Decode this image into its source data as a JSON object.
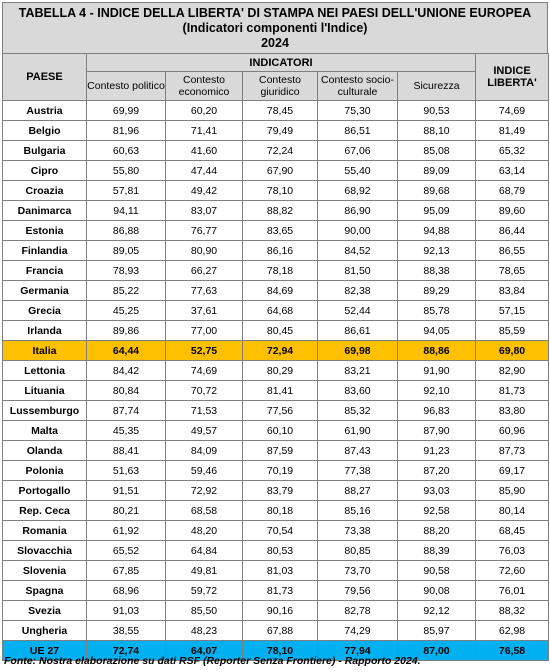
{
  "title": {
    "line1": "TABELLA 4 - INDICE DELLA LIBERTA' DI STAMPA NEI PAESI DELL'UNIONE EUROPEA",
    "line2": "(Indicatori componenti l'Indice)",
    "line3": "2024"
  },
  "header": {
    "paese": "PAESE",
    "indicatori": "INDICATORI",
    "indice": "INDICE LIBERTA'",
    "sub": [
      "Contesto politico",
      "Contesto economico",
      "Contesto giuridico",
      "Contesto socio-culturale",
      "Sicurezza"
    ]
  },
  "rows": [
    {
      "paese": "Austria",
      "v": [
        "69,99",
        "60,20",
        "78,45",
        "75,30",
        "90,53"
      ],
      "indice": "74,69"
    },
    {
      "paese": "Belgio",
      "v": [
        "81,96",
        "71,41",
        "79,49",
        "86,51",
        "88,10"
      ],
      "indice": "81,49"
    },
    {
      "paese": "Bulgaria",
      "v": [
        "60,63",
        "41,60",
        "72,24",
        "67,06",
        "85,08"
      ],
      "indice": "65,32"
    },
    {
      "paese": "Cipro",
      "v": [
        "55,80",
        "47,44",
        "67,90",
        "55,40",
        "89,09"
      ],
      "indice": "63,14"
    },
    {
      "paese": "Croazia",
      "v": [
        "57,81",
        "49,42",
        "78,10",
        "68,92",
        "89,68"
      ],
      "indice": "68,79"
    },
    {
      "paese": "Danimarca",
      "v": [
        "94,11",
        "83,07",
        "88,82",
        "86,90",
        "95,09"
      ],
      "indice": "89,60"
    },
    {
      "paese": "Estonia",
      "v": [
        "86,88",
        "76,77",
        "83,65",
        "90,00",
        "94,88"
      ],
      "indice": "86,44"
    },
    {
      "paese": "Finlandia",
      "v": [
        "89,05",
        "80,90",
        "86,16",
        "84,52",
        "92,13"
      ],
      "indice": "86,55"
    },
    {
      "paese": "Francia",
      "v": [
        "78,93",
        "66,27",
        "78,18",
        "81,50",
        "88,38"
      ],
      "indice": "78,65"
    },
    {
      "paese": "Germania",
      "v": [
        "85,22",
        "77,63",
        "84,69",
        "82,38",
        "89,29"
      ],
      "indice": "83,84"
    },
    {
      "paese": "Grecia",
      "v": [
        "45,25",
        "37,61",
        "64,68",
        "52,44",
        "85,78"
      ],
      "indice": "57,15"
    },
    {
      "paese": "Irlanda",
      "v": [
        "89,86",
        "77,00",
        "80,45",
        "86,61",
        "94,05"
      ],
      "indice": "85,59"
    },
    {
      "paese": "Italia",
      "v": [
        "64,44",
        "52,75",
        "72,94",
        "69,98",
        "88,86"
      ],
      "indice": "69,80"
    },
    {
      "paese": "Lettonia",
      "v": [
        "84,42",
        "74,69",
        "80,29",
        "83,21",
        "91,90"
      ],
      "indice": "82,90"
    },
    {
      "paese": "Lituania",
      "v": [
        "80,84",
        "70,72",
        "81,41",
        "83,60",
        "92,10"
      ],
      "indice": "81,73"
    },
    {
      "paese": "Lussemburgo",
      "v": [
        "87,74",
        "71,53",
        "77,56",
        "85,32",
        "96,83"
      ],
      "indice": "83,80"
    },
    {
      "paese": "Malta",
      "v": [
        "45,35",
        "49,57",
        "60,10",
        "61,90",
        "87,90"
      ],
      "indice": "60,96"
    },
    {
      "paese": "Olanda",
      "v": [
        "88,41",
        "84,09",
        "87,59",
        "87,43",
        "91,23"
      ],
      "indice": "87,73"
    },
    {
      "paese": "Polonia",
      "v": [
        "51,63",
        "59,46",
        "70,19",
        "77,38",
        "87,20"
      ],
      "indice": "69,17"
    },
    {
      "paese": "Portogallo",
      "v": [
        "91,51",
        "72,92",
        "83,79",
        "88,27",
        "93,03"
      ],
      "indice": "85,90"
    },
    {
      "paese": "Rep. Ceca",
      "v": [
        "80,21",
        "68,58",
        "80,18",
        "85,16",
        "92,58"
      ],
      "indice": "80,14"
    },
    {
      "paese": "Romania",
      "v": [
        "61,92",
        "48,20",
        "70,54",
        "73,38",
        "88,20"
      ],
      "indice": "68,45"
    },
    {
      "paese": "Slovacchia",
      "v": [
        "65,52",
        "64,84",
        "80,53",
        "80,85",
        "88,39"
      ],
      "indice": "76,03"
    },
    {
      "paese": "Slovenia",
      "v": [
        "67,85",
        "49,81",
        "81,03",
        "73,70",
        "90,58"
      ],
      "indice": "72,60"
    },
    {
      "paese": "Spagna",
      "v": [
        "68,96",
        "59,72",
        "81,73",
        "79,56",
        "90,08"
      ],
      "indice": "76,01"
    },
    {
      "paese": "Svezia",
      "v": [
        "91,03",
        "85,50",
        "90,16",
        "82,78",
        "92,12"
      ],
      "indice": "88,32"
    },
    {
      "paese": "Ungheria",
      "v": [
        "38,55",
        "48,23",
        "67,88",
        "74,29",
        "85,97"
      ],
      "indice": "62,98"
    },
    {
      "paese": "UE 27",
      "v": [
        "72,74",
        "64,07",
        "78,10",
        "77,94",
        "87,00"
      ],
      "indice": "76,58"
    }
  ],
  "source": "Fonte: Nostra elaborazione su dati RSF (Reporter Senza Frontiere) - Rapporto 2024.",
  "colors": {
    "italia_highlight": "#ffc000",
    "ue_highlight": "#00b0f0",
    "header_bg": "#d9d9d9"
  }
}
